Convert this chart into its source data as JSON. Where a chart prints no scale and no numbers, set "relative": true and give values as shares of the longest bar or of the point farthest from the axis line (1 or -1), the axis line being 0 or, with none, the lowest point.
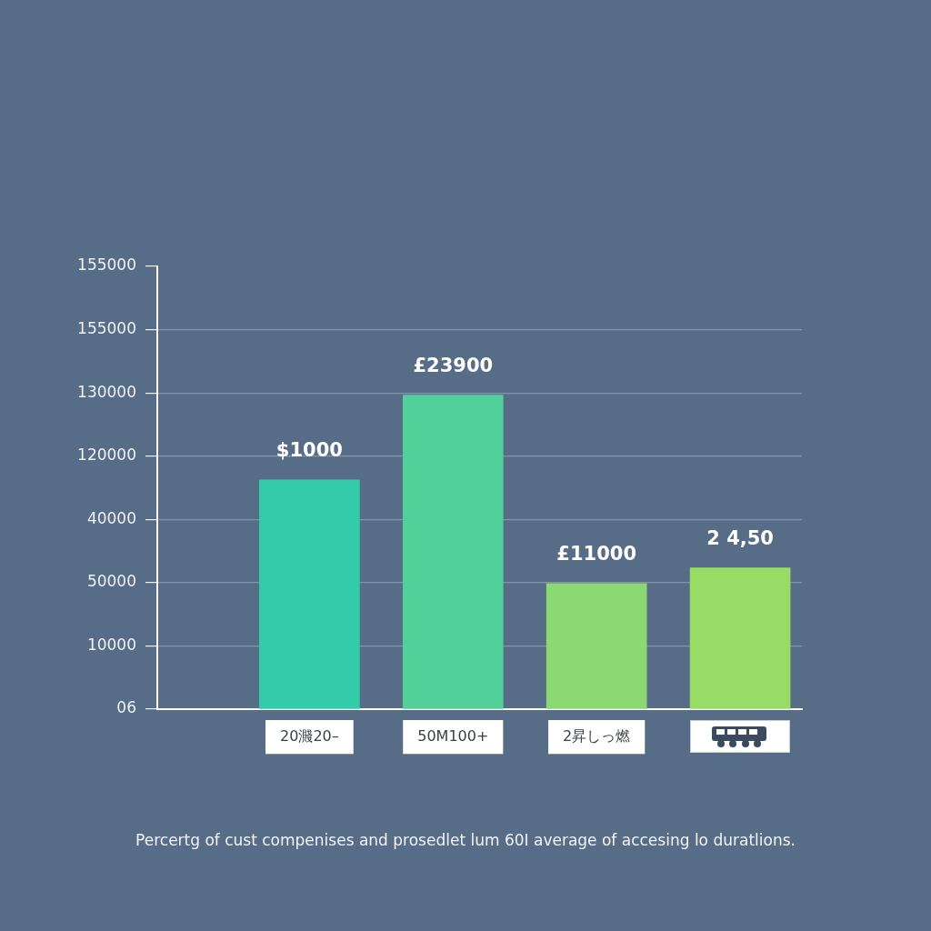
{
  "chart_data": {
    "type": "bar",
    "relative": true,
    "categories": [
      "20濺20–",
      "50M100+",
      "2昇しっ燃",
      null
    ],
    "values": [
      0.73,
      1,
      0.4,
      0.45
    ],
    "colors": [
      "#33cca8",
      "#52d09a",
      "#8cd872",
      "#98dc66"
    ],
    "grid": "y",
    "annotations": [
      "155000",
      "155000",
      "130000",
      "120000",
      "40000",
      "50000",
      "10000",
      "06",
      {
        "text": "$1000",
        "x": "20濺20–",
        "y": 0.73
      },
      {
        "text": "£23900",
        "x": "50M100+",
        "y": 1
      },
      {
        "text": "£11000",
        "x": "2昇しっ燃",
        "y": 0.4
      },
      {
        "text": "2 4,50",
        "y": 0.45
      },
      "Percertg of cust compenises and prosedlet lum 60I average of accesing lo duratlions."
    ]
  }
}
